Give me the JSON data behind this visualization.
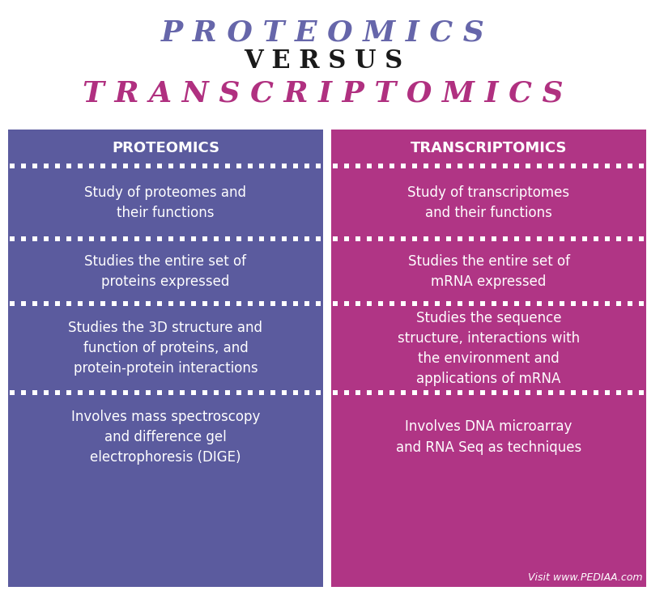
{
  "title1": "P R O T E O M I C S",
  "title2": "V E R S U S",
  "title3": "T R A N S C R I P T O M I C S",
  "title1_color": "#6666aa",
  "title2_color": "#1a1a1a",
  "title3_color": "#b03080",
  "left_header": "PROTEOMICS",
  "right_header": "TRANSCRIPTOMICS",
  "left_color": "#5b5b9e",
  "right_color": "#b03585",
  "header_bg_left": "#5b5b9e",
  "header_bg_right": "#b03585",
  "text_color": "#ffffff",
  "background_color": "#ffffff",
  "left_items": [
    "Study of proteomes and\ntheir functions",
    "Studies the entire set of\nproteins expressed",
    "Studies the 3D structure and\nfunction of proteins, and\nprotein-protein interactions",
    "Involves mass spectroscopy\nand difference gel\nelectrophoresis (DIGE)"
  ],
  "right_items": [
    "Study of transcriptomes\nand their functions",
    "Studies the entire set of\nmRNA expressed",
    "Studies the sequence\nstructure, interactions with\nthe environment and\napplications of mRNA",
    "Involves DNA microarray\nand RNA Seq as techniques"
  ],
  "footer": "Visit www.PEDIAA.com",
  "dot_color": "#ffffff"
}
